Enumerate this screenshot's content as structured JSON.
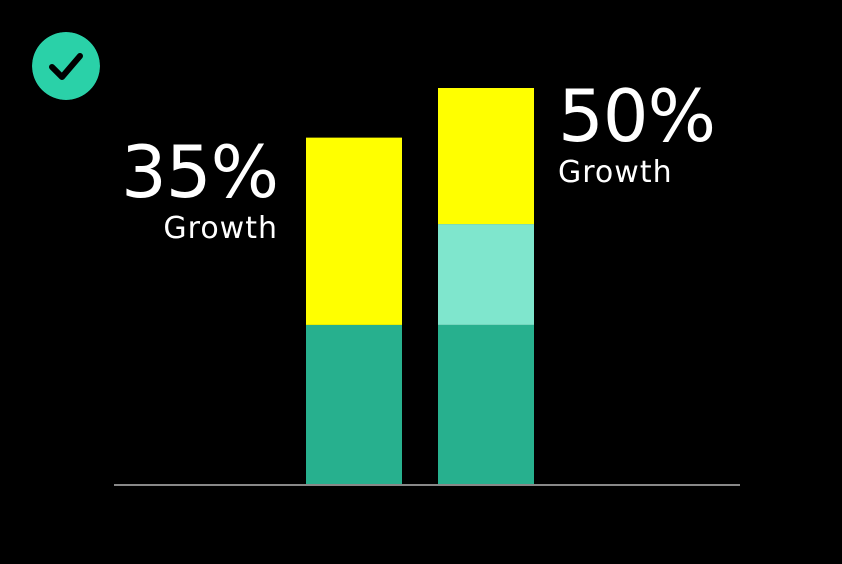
{
  "badge": {
    "icon": "check-icon",
    "color": "#2ad1a8"
  },
  "callouts": [
    {
      "value": "35%",
      "label": "Growth"
    },
    {
      "value": "50%",
      "label": "Growth"
    }
  ],
  "colors": {
    "background": "#000000",
    "segment_base": "#27b08e",
    "segment_mid": "#7fe6cd",
    "segment_top": "#ffff00",
    "axis": "#888888"
  },
  "chart_data": {
    "type": "bar",
    "stacked": true,
    "categories": [
      "",
      ""
    ],
    "series": [
      {
        "values": [
          10,
          10
        ],
        "color": "#27b08e"
      },
      {
        "values": [
          0,
          6.3
        ],
        "color": "#7fe6cd"
      },
      {
        "values": [
          11.7,
          8.5
        ],
        "color": "#ffff00"
      }
    ],
    "ylim": [
      0,
      24.8
    ],
    "grid": false,
    "legend": "none"
  }
}
